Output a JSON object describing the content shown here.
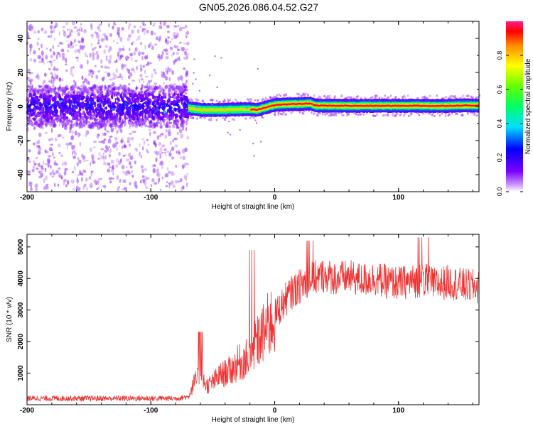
{
  "title": "GN05.2026.086.04.52.G27",
  "colorscale": {
    "label": "Normalized spectral amplitude",
    "range": [
      0,
      1
    ],
    "ticks": [
      {
        "value": 0.0,
        "label": "0.0"
      },
      {
        "value": 0.2,
        "label": "0.2"
      },
      {
        "value": 0.4,
        "label": "0.4"
      },
      {
        "value": 0.6,
        "label": "0.6"
      },
      {
        "value": 0.8,
        "label": "0.8"
      }
    ]
  },
  "chart_data": [
    {
      "type": "heatmap",
      "title": "GN05.2026.086.04.52.G27",
      "xlabel": "Height of straight line (km)",
      "ylabel": "Frequency (Hz)",
      "xlim": [
        -200,
        165
      ],
      "ylim": [
        -50,
        50
      ],
      "xticks": [
        {
          "value": -200,
          "label": "-200"
        },
        {
          "value": -100,
          "label": "-100"
        },
        {
          "value": 0,
          "label": "0"
        },
        {
          "value": 100,
          "label": "100"
        }
      ],
      "yticks": [
        {
          "value": -40,
          "label": "-40"
        },
        {
          "value": -20,
          "label": "-20"
        },
        {
          "value": 0,
          "label": "0"
        },
        {
          "value": 20,
          "label": "20"
        },
        {
          "value": 40,
          "label": "40"
        }
      ],
      "noise_region_x": [
        -200,
        -70
      ],
      "signal_centerline": {
        "x": [
          -70,
          -60,
          -40,
          -25,
          -15,
          -5,
          0,
          10,
          20,
          28,
          32,
          40,
          60,
          80,
          100,
          115,
          125,
          140,
          150,
          165
        ],
        "freq": [
          -1,
          -2,
          -2,
          -1.5,
          -2,
          0,
          1,
          1.3,
          1.5,
          1.8,
          0.6,
          0.5,
          0.4,
          0.4,
          0.4,
          0.5,
          0.3,
          0.4,
          0.6,
          0.6
        ]
      }
    },
    {
      "type": "line",
      "xlabel": "Height of straight line (km)",
      "ylabel": "SNR (10 * v/v)",
      "xlim": [
        -200,
        165
      ],
      "ylim": [
        0,
        5400
      ],
      "xticks": [
        {
          "value": -200,
          "label": "-200"
        },
        {
          "value": -100,
          "label": "-100"
        },
        {
          "value": 0,
          "label": "0"
        },
        {
          "value": 100,
          "label": "100"
        }
      ],
      "yticks": [
        {
          "value": 1000,
          "label": "1000"
        },
        {
          "value": 2000,
          "label": "2000"
        },
        {
          "value": 3000,
          "label": "3000"
        },
        {
          "value": 4000,
          "label": "4000"
        },
        {
          "value": 5000,
          "label": "5000"
        }
      ],
      "color": "#ee3333",
      "series": [
        {
          "name": "SNR",
          "x": [
            -200,
            -180,
            -160,
            -140,
            -120,
            -100,
            -80,
            -70,
            -65,
            -60,
            -55,
            -50,
            -45,
            -40,
            -35,
            -30,
            -25,
            -20,
            -15,
            -10,
            -5,
            0,
            5,
            10,
            15,
            20,
            25,
            30,
            40,
            50,
            60,
            70,
            80,
            90,
            100,
            110,
            120,
            130,
            140,
            150,
            160,
            165
          ],
          "y": [
            200,
            200,
            200,
            200,
            200,
            200,
            200,
            250,
            700,
            900,
            600,
            700,
            900,
            1000,
            1100,
            1300,
            1400,
            1500,
            1900,
            2200,
            2500,
            2800,
            3100,
            3400,
            3600,
            3750,
            3900,
            4000,
            4100,
            4000,
            4050,
            3950,
            4000,
            3900,
            3850,
            3900,
            3950,
            3800,
            3900,
            3800,
            3750,
            3700
          ]
        }
      ]
    }
  ]
}
